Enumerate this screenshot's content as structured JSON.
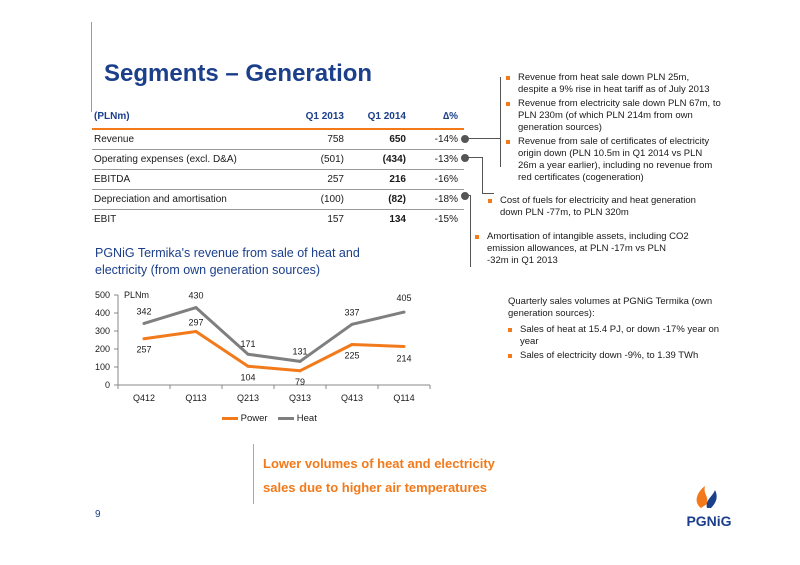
{
  "page": {
    "title": "Segments – Generation",
    "page_number": "9"
  },
  "table": {
    "headers": [
      "(PLNm)",
      "Q1 2013",
      "Q1 2014",
      "∆%"
    ],
    "rows": [
      {
        "label": "Revenue",
        "q1_2013": "758",
        "q1_2014": "650",
        "delta": "-14%"
      },
      {
        "label": "Operating expenses (excl. D&A)",
        "q1_2013": "(501)",
        "q1_2014": "(434)",
        "delta": "-13%"
      },
      {
        "label": "EBITDA",
        "q1_2013": "257",
        "q1_2014": "216",
        "delta": "-16%"
      },
      {
        "label": "Depreciation and amortisation",
        "q1_2013": "(100)",
        "q1_2014": "(82)",
        "delta": "-18%"
      },
      {
        "label": "EBIT",
        "q1_2013": "157",
        "q1_2014": "134",
        "delta": "-15%"
      }
    ]
  },
  "notes": {
    "revenue": [
      "Revenue from heat sale down PLN 25m, despite a 9% rise in heat tariff as of July 2013",
      "Revenue from electricity sale down PLN 67m, to PLN 230m (of which PLN 214m from own generation sources)",
      "Revenue from sale of certificates of electricity origin down (PLN 10.5m in Q1 2014 vs PLN 26m a year earlier), including no revenue from red certificates (cogeneration)"
    ],
    "opex": "Cost of fuels for electricity and heat generation down PLN -77m, to PLN 320m",
    "amortisation": "Amortisation of intangible assets, including CO2 emission allowances, at PLN -17m vs PLN -32m in Q1 2013"
  },
  "volumes": {
    "intro": "Quarterly sales volumes at PGNiG Termika (own generation sources):",
    "items": [
      "Sales of heat at 15.4 PJ, or down -17% year on year",
      "Sales of electricity down -9%, to 1.39 TWh"
    ]
  },
  "callout": {
    "line1": "Lower volumes of heat and electricity",
    "line2": "sales due to higher air temperatures"
  },
  "logo": {
    "text": "PGNiG"
  },
  "colors": {
    "navy": "#1b3f8b",
    "orange": "#f27a1a",
    "grey": "#7f7f7f"
  },
  "chart_data": {
    "type": "line",
    "title": "PGNiG Termika's revenue from sale of heat and electricity (from own generation sources)",
    "ylabel": "PLNm",
    "categories": [
      "Q412",
      "Q113",
      "Q213",
      "Q313",
      "Q413",
      "Q114"
    ],
    "ylim": [
      0,
      500
    ],
    "yticks": [
      "0",
      "100",
      "200",
      "300",
      "400",
      "500"
    ],
    "series": [
      {
        "name": "Power",
        "values": [
          257,
          297,
          104,
          79,
          225,
          214
        ],
        "color": "#f27a1a"
      },
      {
        "name": "Heat",
        "values": [
          342,
          430,
          171,
          131,
          337,
          405
        ],
        "color": "#7f7f7f"
      }
    ],
    "legend": "bottom"
  }
}
